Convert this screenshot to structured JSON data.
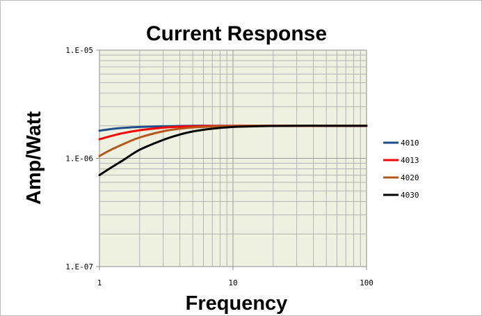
{
  "chart_data": {
    "type": "line",
    "title": "Current Response",
    "xlabel": "Frequency",
    "ylabel": "Amp/Watt",
    "x_scale": "log",
    "y_scale": "log",
    "xlim": [
      1,
      100
    ],
    "ylim": [
      1e-07,
      1e-05
    ],
    "x_ticks": [
      {
        "value": 1,
        "label": "1"
      },
      {
        "value": 10,
        "label": "10"
      },
      {
        "value": 100,
        "label": "100"
      }
    ],
    "y_ticks": [
      {
        "value": 1e-07,
        "label": "1.E-07"
      },
      {
        "value": 1e-06,
        "label": "1.E-06"
      },
      {
        "value": 1e-05,
        "label": "1.E-05"
      }
    ],
    "grid": true,
    "plot_background": "#eef1e0",
    "legend_position": "right",
    "x": [
      1,
      1.2,
      1.5,
      2,
      3,
      4,
      5,
      7,
      10,
      15,
      20,
      30,
      50,
      70,
      100
    ],
    "series": [
      {
        "name": "4010",
        "color": "#1f4e8c",
        "values": [
          1.8e-06,
          1.86e-06,
          1.91e-06,
          1.95e-06,
          1.98e-06,
          1.99e-06,
          2e-06,
          2e-06,
          2e-06,
          2e-06,
          2e-06,
          2e-06,
          2e-06,
          2e-06,
          2e-06
        ]
      },
      {
        "name": "4013",
        "color": "#ff0000",
        "values": [
          1.5e-06,
          1.6e-06,
          1.71e-06,
          1.82e-06,
          1.92e-06,
          1.96e-06,
          1.98e-06,
          1.99e-06,
          2e-06,
          2e-06,
          2e-06,
          2e-06,
          2e-06,
          2e-06,
          2e-06
        ]
      },
      {
        "name": "4020",
        "color": "#b8551b",
        "values": [
          1.05e-06,
          1.19e-06,
          1.35e-06,
          1.56e-06,
          1.78e-06,
          1.88e-06,
          1.93e-06,
          1.97e-06,
          1.99e-06,
          2e-06,
          2e-06,
          2e-06,
          2e-06,
          2e-06,
          2e-06
        ]
      },
      {
        "name": "4030",
        "color": "#000000",
        "values": [
          7e-07,
          8.1e-07,
          9.6e-07,
          1.2e-06,
          1.48e-06,
          1.66e-06,
          1.77e-06,
          1.88e-06,
          1.95e-06,
          1.98e-06,
          1.99e-06,
          2e-06,
          2e-06,
          2e-06,
          2e-06
        ]
      }
    ]
  }
}
